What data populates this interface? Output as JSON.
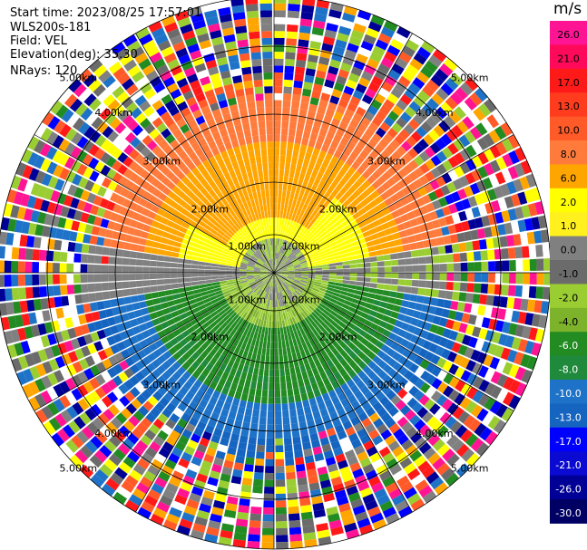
{
  "header": {
    "start_time": "Start time: 2023/08/25 17:57:01",
    "site": "WLS200s-181",
    "field": "Field: VEL",
    "elevation": "Elevation(deg): 35.30",
    "nrays": "NRays: 120"
  },
  "colorbar": {
    "unit": "m/s",
    "levels": [
      "26.0",
      "21.0",
      "17.0",
      "13.0",
      "10.0",
      "8.0",
      "6.0",
      "2.0",
      "1.0",
      "0.0",
      "-1.0",
      "-2.0",
      "-4.0",
      "-6.0",
      "-8.0",
      "-10.0",
      "-13.0",
      "-17.0",
      "-21.0",
      "-26.0",
      "-30.0"
    ],
    "colors": [
      "#ff1493",
      "#ff0a5a",
      "#ff1a1a",
      "#ff3c1e",
      "#ff5a28",
      "#ff7b3c",
      "#ffa500",
      "#ffff00",
      "#fff01e",
      "#808080",
      "#6b6b6b",
      "#9acd32",
      "#7cb32a",
      "#228b22",
      "#1f8a3c",
      "#1e73c8",
      "#1565c0",
      "#0000ff",
      "#0a0ad2",
      "#000096",
      "#000064"
    ]
  },
  "chart_data": {
    "type": "heatmap",
    "title": "",
    "nrays": 120,
    "ring_labels": [
      "1.00km",
      "2.00km",
      "3.00km",
      "4.00km",
      "5.00km"
    ],
    "max_range_km": 5.2,
    "grid": true,
    "legend_placement": "right"
  }
}
